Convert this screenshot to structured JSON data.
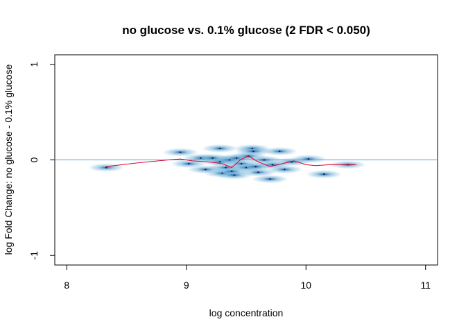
{
  "chart_data": {
    "type": "scatter",
    "title": "no glucose vs. 0.1% glucose (2 FDR < 0.050)",
    "xlabel": "log concentration",
    "ylabel": "log Fold Change: no glucose - 0.1% glucose",
    "xlim": [
      7.9,
      11.1
    ],
    "ylim": [
      -1.1,
      1.1
    ],
    "xticks": [
      "8",
      "9",
      "10",
      "11"
    ],
    "yticks": [
      "-1",
      "0",
      "1"
    ],
    "grid": false,
    "legend": "none",
    "colors": {
      "points": "#08519c",
      "halo": "#6baed6",
      "loess": "#e4002b",
      "zero_line": "#4c9ed9"
    },
    "points": [
      {
        "x": 8.33,
        "y": -0.08
      },
      {
        "x": 8.95,
        "y": 0.08
      },
      {
        "x": 9.02,
        "y": -0.04
      },
      {
        "x": 9.12,
        "y": 0.02
      },
      {
        "x": 9.16,
        "y": -0.1
      },
      {
        "x": 9.22,
        "y": 0.02
      },
      {
        "x": 9.28,
        "y": 0.12
      },
      {
        "x": 9.28,
        "y": -0.02
      },
      {
        "x": 9.3,
        "y": -0.14
      },
      {
        "x": 9.33,
        "y": -0.08
      },
      {
        "x": 9.36,
        "y": 0.0
      },
      {
        "x": 9.38,
        "y": -0.12
      },
      {
        "x": 9.4,
        "y": -0.16
      },
      {
        "x": 9.42,
        "y": 0.02
      },
      {
        "x": 9.46,
        "y": -0.04
      },
      {
        "x": 9.5,
        "y": -0.08
      },
      {
        "x": 9.52,
        "y": 0.04
      },
      {
        "x": 9.55,
        "y": 0.12
      },
      {
        "x": 9.56,
        "y": 0.09
      },
      {
        "x": 9.58,
        "y": -0.07
      },
      {
        "x": 9.6,
        "y": -0.13
      },
      {
        "x": 9.65,
        "y": 0.0
      },
      {
        "x": 9.7,
        "y": -0.2
      },
      {
        "x": 9.72,
        "y": -0.05
      },
      {
        "x": 9.78,
        "y": 0.09
      },
      {
        "x": 9.82,
        "y": -0.1
      },
      {
        "x": 9.88,
        "y": -0.02
      },
      {
        "x": 10.02,
        "y": 0.01
      },
      {
        "x": 10.15,
        "y": -0.15
      },
      {
        "x": 10.35,
        "y": -0.05
      }
    ],
    "loess_line": [
      {
        "x": 8.33,
        "y": -0.07
      },
      {
        "x": 8.6,
        "y": -0.03
      },
      {
        "x": 8.85,
        "y": 0.0
      },
      {
        "x": 8.95,
        "y": 0.01
      },
      {
        "x": 9.05,
        "y": -0.01
      },
      {
        "x": 9.18,
        "y": -0.02
      },
      {
        "x": 9.3,
        "y": -0.04
      },
      {
        "x": 9.38,
        "y": -0.08
      },
      {
        "x": 9.45,
        "y": 0.0
      },
      {
        "x": 9.52,
        "y": 0.04
      },
      {
        "x": 9.6,
        "y": -0.02
      },
      {
        "x": 9.7,
        "y": -0.07
      },
      {
        "x": 9.8,
        "y": -0.04
      },
      {
        "x": 9.9,
        "y": -0.01
      },
      {
        "x": 10.0,
        "y": -0.05
      },
      {
        "x": 10.08,
        "y": -0.06
      },
      {
        "x": 10.2,
        "y": -0.05
      },
      {
        "x": 10.42,
        "y": -0.05
      }
    ]
  }
}
